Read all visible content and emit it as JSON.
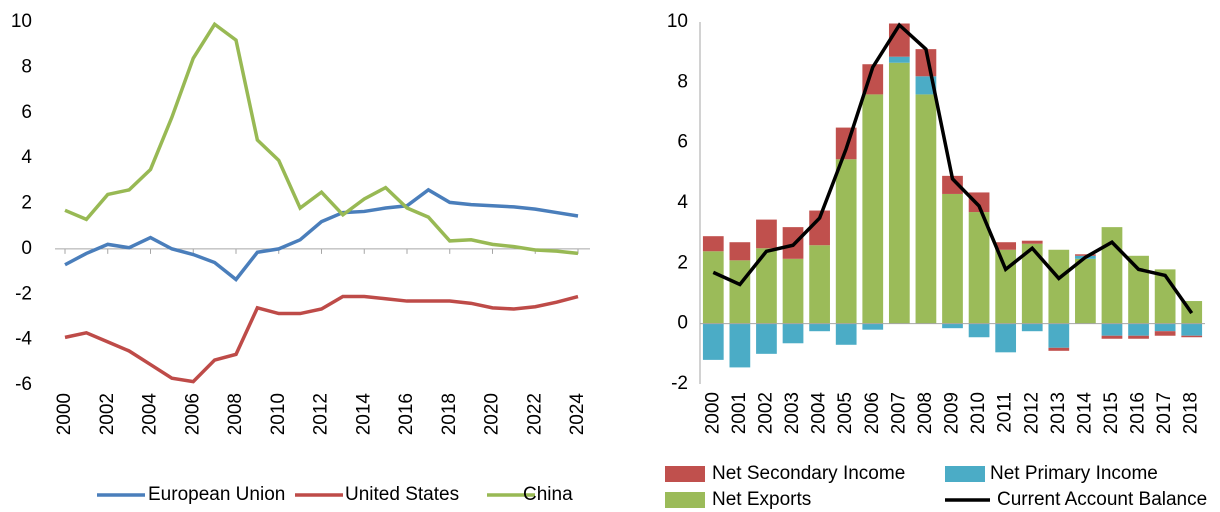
{
  "chart_data": [
    {
      "type": "line",
      "x": [
        2000,
        2001,
        2002,
        2003,
        2004,
        2005,
        2006,
        2007,
        2008,
        2009,
        2010,
        2011,
        2012,
        2013,
        2014,
        2015,
        2016,
        2017,
        2018,
        2019,
        2020,
        2021,
        2022,
        2023,
        2024
      ],
      "xlim": [
        2000,
        2024
      ],
      "xticks": [
        2000,
        2002,
        2004,
        2006,
        2008,
        2010,
        2012,
        2014,
        2016,
        2018,
        2020,
        2022,
        2024
      ],
      "ylim": [
        -6,
        10
      ],
      "yticks": [
        -6,
        -4,
        -2,
        0,
        2,
        4,
        6,
        8,
        10
      ],
      "series": [
        {
          "name": "European Union",
          "color": "#4a7ebb",
          "values": [
            -0.7,
            -0.2,
            0.2,
            0.05,
            0.5,
            0,
            -0.25,
            -0.6,
            -1.35,
            -0.15,
            0,
            0.4,
            1.2,
            1.6,
            1.65,
            1.8,
            1.9,
            2.6,
            2.05,
            1.95,
            1.9,
            1.85,
            1.75,
            1.6,
            1.45
          ]
        },
        {
          "name": "United States",
          "color": "#be4b48",
          "values": [
            -3.9,
            -3.7,
            -4.1,
            -4.5,
            -5.1,
            -5.7,
            -5.85,
            -4.9,
            -4.65,
            -2.6,
            -2.85,
            -2.85,
            -2.65,
            -2.1,
            -2.1,
            -2.2,
            -2.3,
            -2.3,
            -2.3,
            -2.4,
            -2.6,
            -2.65,
            -2.55,
            -2.35,
            -2.1
          ]
        },
        {
          "name": "China",
          "color": "#98b954",
          "values": [
            1.7,
            1.3,
            2.4,
            2.6,
            3.5,
            5.8,
            8.4,
            9.9,
            9.2,
            4.8,
            3.9,
            1.8,
            2.5,
            1.5,
            2.2,
            2.7,
            1.8,
            1.4,
            0.35,
            0.4,
            0.2,
            0.1,
            -0.05,
            -0.1,
            -0.2
          ]
        }
      ]
    },
    {
      "type": "bar",
      "stacked": true,
      "categories": [
        "2000",
        "2001",
        "2002",
        "2003",
        "2004",
        "2005",
        "2006",
        "2007",
        "2008",
        "2009",
        "2010",
        "2011",
        "2012",
        "2013",
        "2014",
        "2015",
        "2016",
        "2017",
        "2018"
      ],
      "ylim": [
        -2,
        10
      ],
      "yticks": [
        -2,
        0,
        2,
        4,
        6,
        8,
        10
      ],
      "series": [
        {
          "name": "Net Secondary Income",
          "color": "#c0504d",
          "values": [
            0.5,
            0.6,
            0.95,
            1.05,
            1.15,
            1.05,
            1.0,
            1.1,
            0.9,
            0.6,
            0.65,
            0.25,
            0.1,
            -0.1,
            0.05,
            -0.1,
            -0.1,
            -0.15,
            -0.05
          ]
        },
        {
          "name": "Net Primary Income",
          "color": "#4bacc6",
          "values": [
            -1.2,
            -1.45,
            -1.0,
            -0.65,
            -0.25,
            -0.7,
            -0.2,
            0.2,
            0.6,
            -0.15,
            -0.45,
            -0.95,
            -0.25,
            -0.8,
            0.1,
            -0.4,
            -0.4,
            -0.25,
            -0.4
          ]
        },
        {
          "name": "Net Exports",
          "color": "#9bbb59",
          "values": [
            2.4,
            2.1,
            2.5,
            2.15,
            2.6,
            5.45,
            7.6,
            8.65,
            7.6,
            4.3,
            3.7,
            2.45,
            2.65,
            2.45,
            2.15,
            3.2,
            2.25,
            1.8,
            0.75
          ]
        },
        {
          "name": "Current Account Balance",
          "color": "#000000",
          "type": "line",
          "values": [
            1.7,
            1.3,
            2.4,
            2.6,
            3.5,
            5.8,
            8.5,
            9.9,
            9.1,
            4.8,
            3.9,
            1.8,
            2.5,
            1.5,
            2.2,
            2.7,
            1.8,
            1.6,
            0.35
          ]
        }
      ]
    }
  ]
}
